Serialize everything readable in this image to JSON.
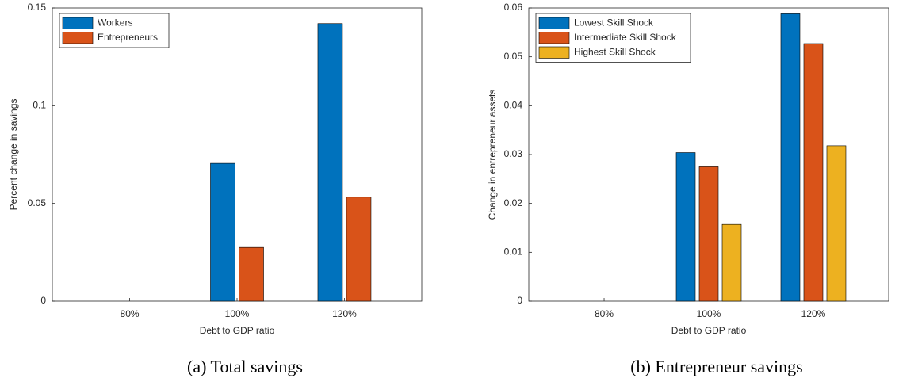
{
  "chart_data": [
    {
      "type": "bar",
      "caption": "(a) Total savings",
      "xlabel": "Debt to GDP ratio",
      "ylabel": "Percent change in savings",
      "categories": [
        "80%",
        "100%",
        "120%"
      ],
      "series": [
        {
          "name": "Workers",
          "color": "#0072bd",
          "values": [
            0,
            0.0705,
            0.142
          ]
        },
        {
          "name": "Entrepreneurs",
          "color": "#d95319",
          "values": [
            0,
            0.0275,
            0.0532
          ]
        }
      ],
      "ylim": [
        0,
        0.15
      ],
      "yticks": [
        0,
        0.05,
        0.1,
        0.15
      ],
      "legend": "upper-left"
    },
    {
      "type": "bar",
      "caption": "(b) Entrepreneur savings",
      "xlabel": "Debt to GDP ratio",
      "ylabel": "Change in entrepreneur assets",
      "categories": [
        "80%",
        "100%",
        "120%"
      ],
      "series": [
        {
          "name": "Lowest Skill Shock",
          "color": "#0072bd",
          "values": [
            0,
            0.0304,
            0.0588
          ]
        },
        {
          "name": "Intermediate Skill Shock",
          "color": "#d95319",
          "values": [
            0,
            0.0275,
            0.0527
          ]
        },
        {
          "name": "Highest Skill Shock",
          "color": "#edb120",
          "values": [
            0,
            0.0157,
            0.0318
          ]
        }
      ],
      "ylim": [
        0,
        0.06
      ],
      "yticks": [
        0,
        0.01,
        0.02,
        0.03,
        0.04,
        0.05,
        0.06
      ],
      "legend": "upper-left"
    }
  ]
}
